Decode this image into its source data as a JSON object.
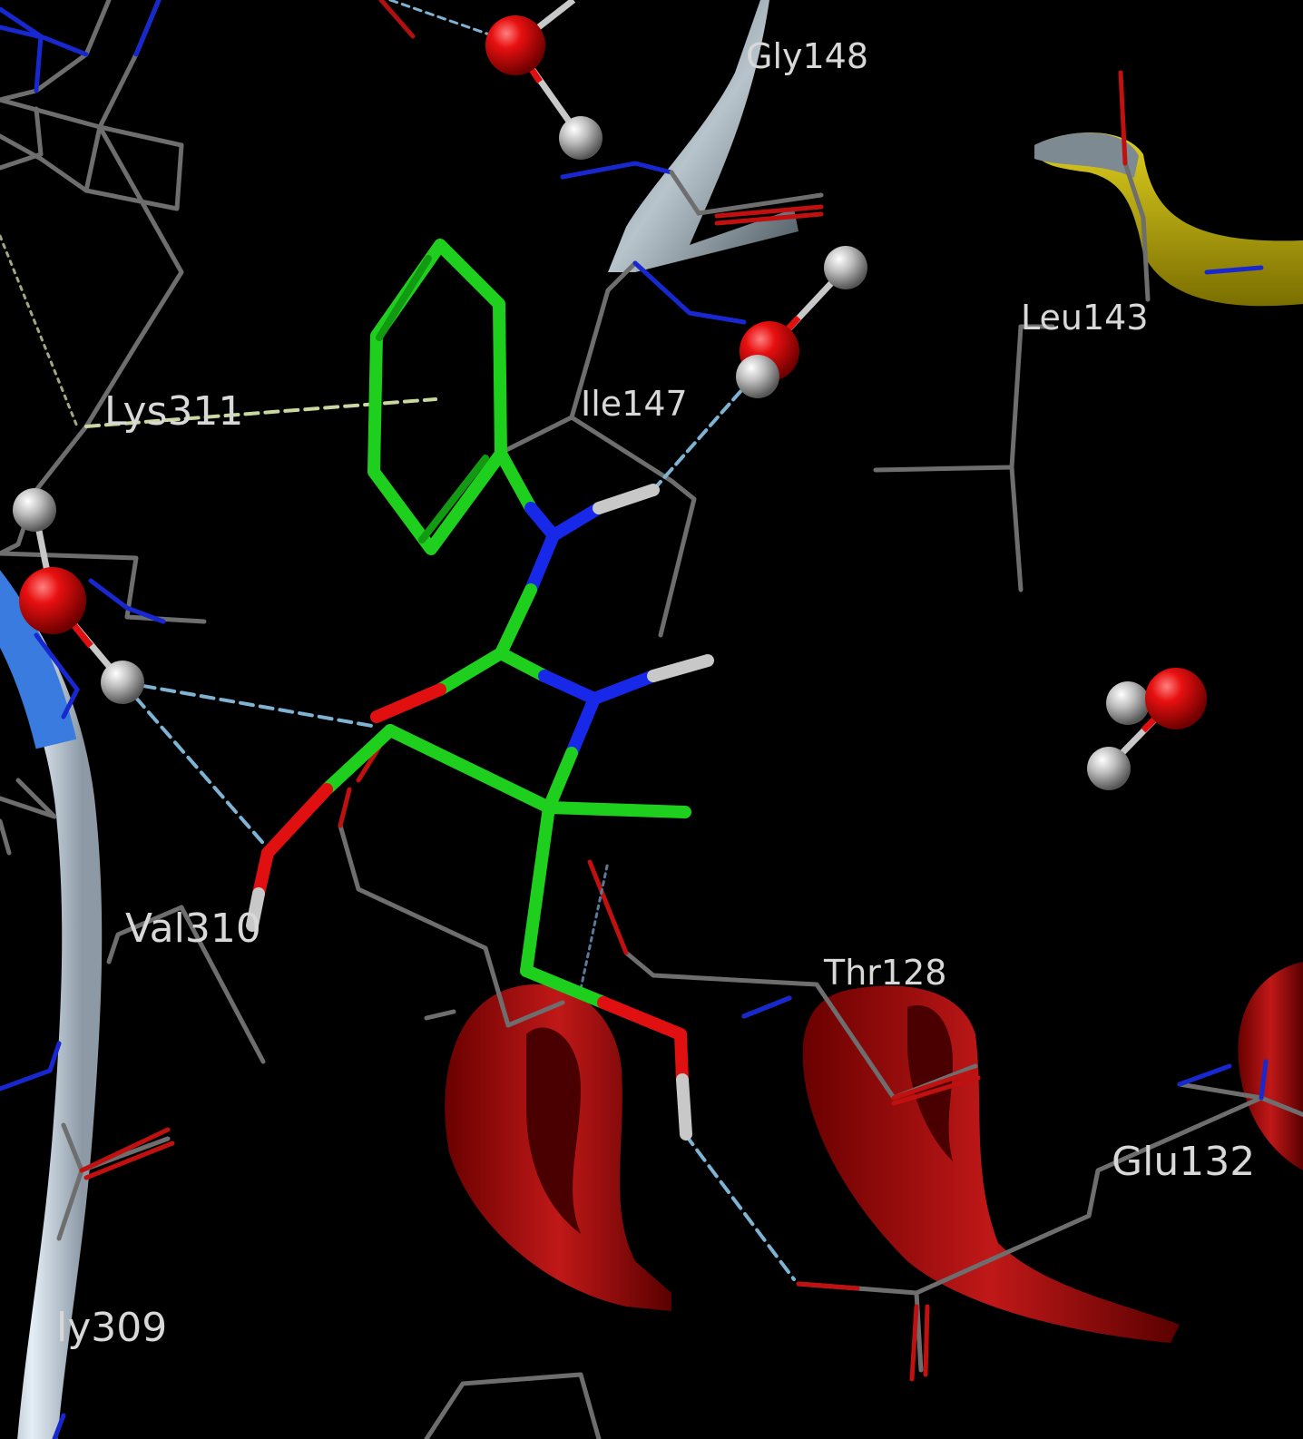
{
  "colors": {
    "background": "#000000",
    "carbon_ligand": "#1ecf1e",
    "carbon_protein": "#6e6e6e",
    "oxygen": "#e01010",
    "nitrogen": "#1020e0",
    "hydrogen": "#c8c8c8",
    "hbond": "#7fb3d3",
    "pi_cation": "#c8d8a0",
    "helix": "#b01010",
    "strand": "#a8b4c0",
    "coil_blue": "#3a7be0",
    "yellow_strand": "#b8a800"
  },
  "labels": {
    "gly148": "Gly148",
    "leu143": "Leu143",
    "lys311": "Lys311",
    "ile147": "Ile147",
    "val310": "Val310",
    "thr128": "Thr128",
    "glu132": "Glu132",
    "gly309": "ly309"
  }
}
